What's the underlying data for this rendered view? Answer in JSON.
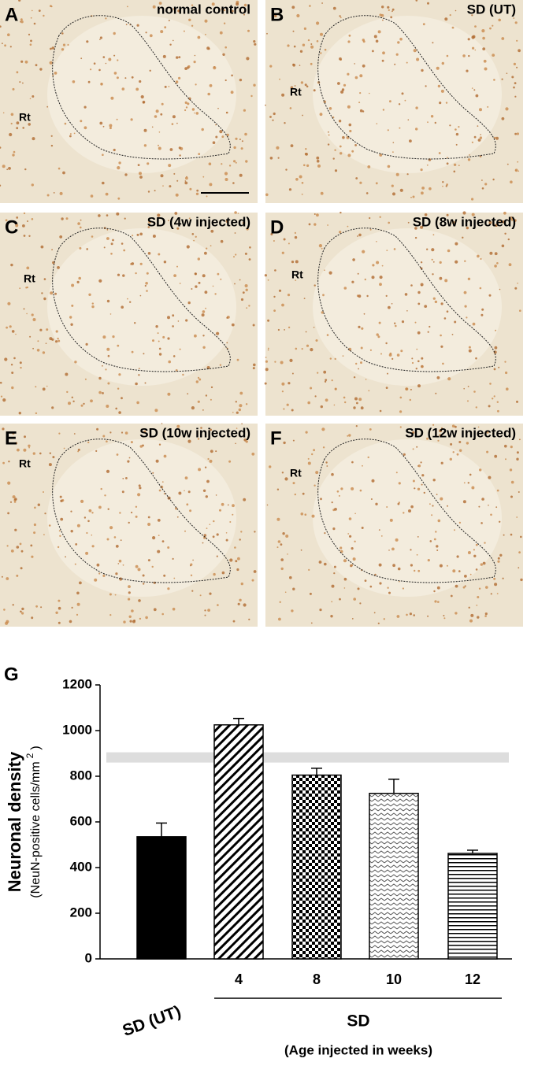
{
  "panels": [
    {
      "letter": "A",
      "label": "normal control",
      "region": "Rt"
    },
    {
      "letter": "B",
      "label": "SD (UT)",
      "region": "Rt"
    },
    {
      "letter": "C",
      "label": "SD (4w injected)",
      "region": "Rt"
    },
    {
      "letter": "D",
      "label": "SD (8w injected)",
      "region": "Rt"
    },
    {
      "letter": "E",
      "label": "SD (10w injected)",
      "region": "Rt"
    },
    {
      "letter": "F",
      "label": "SD (12w injected)",
      "region": "Rt"
    }
  ],
  "chart_data": {
    "type": "bar",
    "panel": "G",
    "ylabel": "Neuronal density",
    "ylabel_sub": [
      "(NeuN-positive cells/mm",
      "2",
      ")"
    ],
    "categories": [
      "SD (UT)",
      "4",
      "8",
      "10",
      "12"
    ],
    "group_label": "SD",
    "group_sublabel": "(Age injected in weeks)",
    "values": [
      535,
      1025,
      805,
      725,
      462
    ],
    "errors": [
      60,
      28,
      30,
      62,
      14
    ],
    "patterns": [
      "solid",
      "diagonal",
      "checker",
      "zigzag",
      "horizontal"
    ],
    "color": "#000000",
    "reference_band": [
      860,
      905
    ],
    "ylim": [
      0,
      1200
    ],
    "yticks": [
      0,
      200,
      400,
      600,
      800,
      1000,
      1200
    ]
  }
}
